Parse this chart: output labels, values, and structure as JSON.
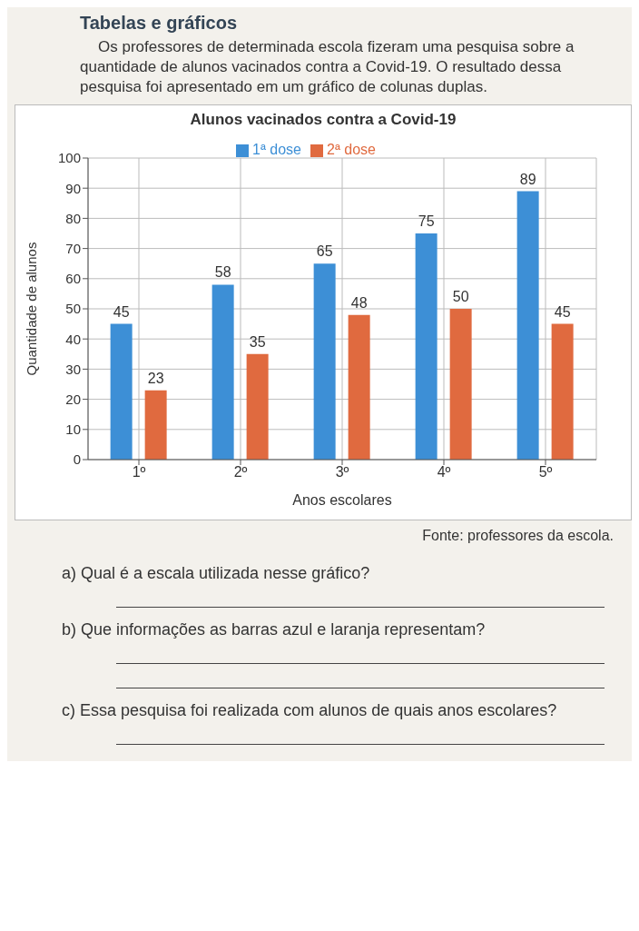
{
  "chart_data": {
    "type": "bar",
    "title": "Alunos vacinados contra a Covid-19",
    "xlabel": "Anos escolares",
    "ylabel": "Quantidade de alunos",
    "categories": [
      "1º",
      "2º",
      "3º",
      "4º",
      "5º"
    ],
    "series": [
      {
        "name": "1ª dose",
        "color": "#3d8fd6",
        "values": [
          45,
          58,
          65,
          75,
          89
        ]
      },
      {
        "name": "2ª dose",
        "color": "#e06a3f",
        "values": [
          23,
          35,
          48,
          50,
          45
        ]
      }
    ],
    "ylim": [
      0,
      100
    ],
    "yticks": [
      0,
      10,
      20,
      30,
      40,
      50,
      60,
      70,
      80,
      90,
      100
    ],
    "grid": true,
    "legend": "top",
    "data_labels": true,
    "annotations": [
      "Tabelas e gráficos",
      "Os professores de determinada escola fizeram uma pesquisa sobre a quantidade de alunos vacinados contra a Covid-19. O resultado dessa pesquisa foi apresentado em um gráfico de colunas duplas.",
      "Fonte: professores da escola.",
      "a) Qual é a escala utilizada nesse gráfico?",
      "b) Que informações as barras azul e laranja representam?",
      "c) Essa pesquisa foi realizada com alunos de quais anos escolares?"
    ]
  }
}
